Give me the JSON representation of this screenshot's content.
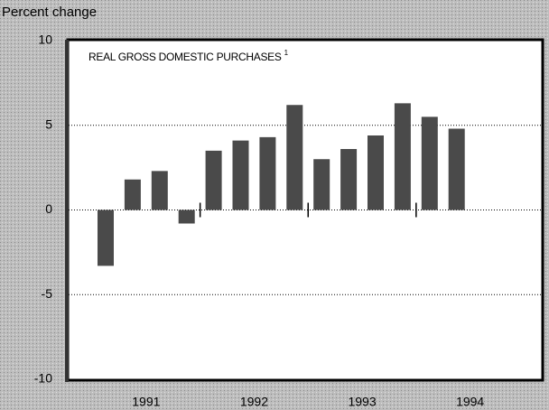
{
  "chart_data": {
    "type": "bar",
    "title": "REAL GROSS DOMESTIC PURCHASES",
    "title_note": "1",
    "y_label": "Percent change",
    "groups": [
      {
        "name": "1991",
        "values": [
          -3.3,
          1.8,
          2.3,
          -0.8
        ]
      },
      {
        "name": "1992",
        "values": [
          3.5,
          4.1,
          4.3,
          6.2
        ]
      },
      {
        "name": "1993",
        "values": [
          3.0,
          3.6,
          4.4,
          6.3
        ]
      },
      {
        "name": "1994",
        "values": [
          5.5,
          4.8
        ]
      }
    ],
    "color": "#4a4a4a",
    "ylim": [
      -10,
      10
    ],
    "yticks": [
      -10,
      -5,
      0,
      5,
      10
    ],
    "grid": true
  }
}
